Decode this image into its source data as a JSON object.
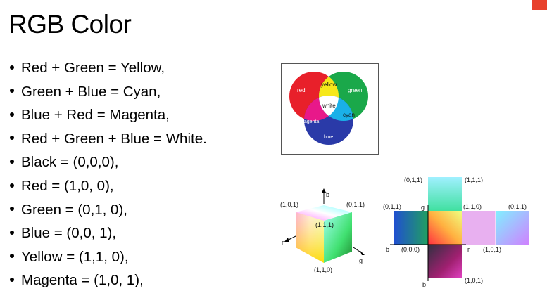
{
  "title": "RGB Color",
  "bullets": [
    "Red + Green = Yellow,",
    "Green + Blue = Cyan,",
    "Blue + Red = Magenta,",
    "Red + Green + Blue = White.",
    "Black = (0,0,0),",
    "Red = (1,0, 0),",
    "Green = (0,1, 0),",
    "Blue = (0,0, 1),",
    "Yellow = (1,1, 0),",
    "Magenta = (1,0, 1),"
  ],
  "venn": {
    "labels": {
      "red": "red",
      "green": "green",
      "blue": "blue",
      "yellow": "yellow",
      "cyan": "cyan",
      "magenta": "magenta",
      "white": "white"
    },
    "colors": {
      "red": "#e8202a",
      "green": "#1aa84a",
      "blue": "#2a3aa8",
      "yellow": "#f6e81a",
      "cyan": "#1ab0e8",
      "magenta": "#e8188a",
      "white": "#ffffff"
    }
  },
  "cube": {
    "label_top_left": "(1,0,1)",
    "label_top_right": "(0,1,1)",
    "label_center": "(1,1,1)",
    "label_bottom": "(1,1,0)",
    "axis_b": "b",
    "axis_r": "r",
    "axis_g": "g"
  },
  "net": {
    "label_top_left": "(0,1,1)",
    "label_top_right": "(1,1,1)",
    "label_mid_left": "(0,1,1)",
    "label_mid_center": "(1,1,0)",
    "label_mid_right": "(0,1,1)",
    "label_origin": "(0,0,0)",
    "label_right": "(1,0,1)",
    "label_bottom": "(1,0,1)",
    "axis_g": "g",
    "axis_b_left": "b",
    "axis_r": "r",
    "axis_b_bottom": "b"
  }
}
